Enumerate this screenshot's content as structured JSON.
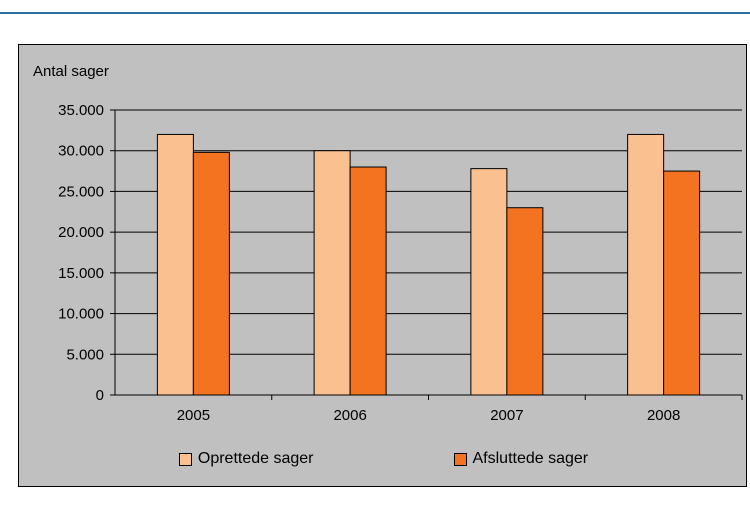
{
  "chart_data": {
    "type": "bar",
    "title": "",
    "ylabel": "Antal sager",
    "xlabel": "",
    "categories": [
      "2005",
      "2006",
      "2007",
      "2008"
    ],
    "ylim": [
      0,
      35000
    ],
    "yticks": [
      0,
      5000,
      10000,
      15000,
      20000,
      25000,
      30000,
      35000
    ],
    "ytick_labels": [
      "0",
      "5.000",
      "10.000",
      "15.000",
      "20.000",
      "25.000",
      "30.000",
      "35.000"
    ],
    "grid": "horizontal",
    "legend_position": "bottom",
    "series": [
      {
        "name": "Oprettede sager",
        "color": "#fac090",
        "values": [
          32000,
          30000,
          27800,
          32000
        ]
      },
      {
        "name": "Afsluttede sager",
        "color": "#f47321",
        "values": [
          29800,
          28000,
          23000,
          27500
        ]
      }
    ]
  }
}
